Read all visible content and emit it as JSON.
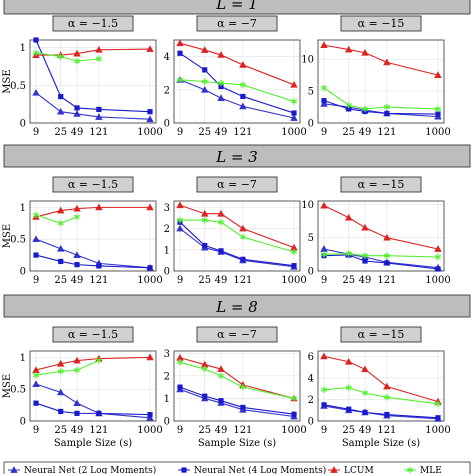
{
  "legend": [
    {
      "label": "Neural Net (2 Log Moments)",
      "color": "#3333cc",
      "marker": "triangle-filled"
    },
    {
      "label": "Neural Net (4 Log Moments)",
      "color": "#1a1acc",
      "marker": "square-filled"
    },
    {
      "label": "LCUM",
      "color": "#dd2222",
      "marker": "triangle"
    },
    {
      "label": "MLE",
      "color": "#55ee33",
      "marker": "star"
    }
  ],
  "colors": {
    "nn2": "#3333cc",
    "nn4": "#1a1acc",
    "lcum": "#dd2222",
    "mle": "#55ee33",
    "band": "#bdbdbd",
    "title_box": "#d0d0d0"
  },
  "chart_data": {
    "type": "line",
    "x": [
      9,
      25,
      49,
      121,
      1000
    ],
    "x_tick_labels": [
      "9",
      "25",
      "49",
      "121",
      "1000"
    ],
    "xlabel": "Sample Size (s)",
    "ylabel": "MSE",
    "rows": [
      {
        "band_label": "L = 1",
        "panels": [
          {
            "title": "α = −1.5",
            "ylim": [
              0,
              1.1
            ],
            "yticks": [
              0,
              0.5,
              1
            ],
            "series": [
              {
                "key": "nn2",
                "values": [
                  0.4,
                  0.15,
                  0.12,
                  0.08,
                  0.05
                ]
              },
              {
                "key": "nn4",
                "values": [
                  1.1,
                  0.35,
                  0.2,
                  0.18,
                  0.15
                ]
              },
              {
                "key": "lcum",
                "values": [
                  0.9,
                  0.9,
                  0.92,
                  0.97,
                  0.98
                ]
              },
              {
                "key": "mle",
                "values": [
                  0.93,
                  0.88,
                  0.82,
                  0.85,
                  null
                ]
              }
            ]
          },
          {
            "title": "α = −7",
            "ylim": [
              0,
              5
            ],
            "yticks": [
              0,
              2,
              4
            ],
            "series": [
              {
                "key": "nn2",
                "values": [
                  2.6,
                  2.0,
                  1.5,
                  1.0,
                  0.3
                ]
              },
              {
                "key": "nn4",
                "values": [
                  4.2,
                  3.2,
                  2.2,
                  1.6,
                  0.6
                ]
              },
              {
                "key": "lcum",
                "values": [
                  4.8,
                  4.4,
                  4.1,
                  3.5,
                  2.3
                ]
              },
              {
                "key": "mle",
                "values": [
                  2.6,
                  2.5,
                  2.4,
                  2.3,
                  1.3
                ]
              }
            ]
          },
          {
            "title": "α = −15",
            "ylim": [
              0,
              13
            ],
            "yticks": [
              0,
              5,
              10
            ],
            "series": [
              {
                "key": "nn2",
                "values": [
                  3.0,
                  2.5,
                  2.0,
                  1.5,
                  1.0
                ]
              },
              {
                "key": "nn4",
                "values": [
                  3.5,
                  2.2,
                  1.8,
                  1.5,
                  1.4
                ]
              },
              {
                "key": "lcum",
                "values": [
                  12.2,
                  11.5,
                  11.0,
                  9.5,
                  7.5
                ]
              },
              {
                "key": "mle",
                "values": [
                  5.5,
                  2.8,
                  2.2,
                  2.5,
                  2.2
                ]
              }
            ]
          }
        ]
      },
      {
        "band_label": "L = 3",
        "panels": [
          {
            "title": "α = −1.5",
            "ylim": [
              0,
              1.1
            ],
            "yticks": [
              0,
              0.5,
              1
            ],
            "series": [
              {
                "key": "nn2",
                "values": [
                  0.5,
                  0.35,
                  0.25,
                  0.12,
                  0.05
                ]
              },
              {
                "key": "nn4",
                "values": [
                  0.25,
                  0.15,
                  0.1,
                  0.08,
                  0.05
                ]
              },
              {
                "key": "lcum",
                "values": [
                  0.85,
                  0.95,
                  0.98,
                  1.0,
                  1.0
                ]
              },
              {
                "key": "mle",
                "values": [
                  0.88,
                  0.75,
                  0.85,
                  null,
                  null
                ]
              }
            ]
          },
          {
            "title": "α = −7",
            "ylim": [
              0,
              3.3
            ],
            "yticks": [
              0,
              1,
              2,
              3
            ],
            "series": [
              {
                "key": "nn2",
                "values": [
                  2.0,
                  1.1,
                  0.9,
                  0.5,
                  0.2
                ]
              },
              {
                "key": "nn4",
                "values": [
                  2.3,
                  1.2,
                  0.95,
                  0.55,
                  0.25
                ]
              },
              {
                "key": "lcum",
                "values": [
                  3.1,
                  2.7,
                  2.7,
                  2.0,
                  1.1
                ]
              },
              {
                "key": "mle",
                "values": [
                  2.4,
                  2.4,
                  2.3,
                  1.6,
                  0.9
                ]
              }
            ]
          },
          {
            "title": "α = −15",
            "ylim": [
              0,
              10.5
            ],
            "yticks": [
              0,
              5,
              10
            ],
            "series": [
              {
                "key": "nn2",
                "values": [
                  3.3,
                  2.5,
                  2.1,
                  1.3,
                  0.5
                ]
              },
              {
                "key": "nn4",
                "values": [
                  2.3,
                  2.4,
                  1.5,
                  1.2,
                  0.3
                ]
              },
              {
                "key": "lcum",
                "values": [
                  9.8,
                  8.0,
                  6.5,
                  5.0,
                  3.3
                ]
              },
              {
                "key": "mle",
                "values": [
                  2.5,
                  2.6,
                  2.3,
                  2.3,
                  2.1
                ]
              }
            ]
          }
        ]
      },
      {
        "band_label": "L = 8",
        "panels": [
          {
            "title": "α = −1.5",
            "ylim": [
              0,
              1.1
            ],
            "yticks": [
              0,
              0.5,
              1
            ],
            "series": [
              {
                "key": "nn2",
                "values": [
                  0.58,
                  0.45,
                  0.28,
                  0.12,
                  0.05
                ]
              },
              {
                "key": "nn4",
                "values": [
                  0.28,
                  0.15,
                  0.12,
                  0.12,
                  0.1
                ]
              },
              {
                "key": "lcum",
                "values": [
                  0.8,
                  0.9,
                  0.95,
                  0.98,
                  1.0
                ]
              },
              {
                "key": "mle",
                "values": [
                  0.72,
                  0.78,
                  0.8,
                  0.95,
                  null
                ]
              }
            ]
          },
          {
            "title": "α = −7",
            "ylim": [
              0,
              3.1
            ],
            "yticks": [
              0,
              1,
              2,
              3
            ],
            "series": [
              {
                "key": "nn2",
                "values": [
                  1.4,
                  1.0,
                  0.8,
                  0.5,
                  0.2
                ]
              },
              {
                "key": "nn4",
                "values": [
                  1.5,
                  1.1,
                  0.9,
                  0.6,
                  0.3
                ]
              },
              {
                "key": "lcum",
                "values": [
                  2.8,
                  2.5,
                  2.3,
                  1.6,
                  1.0
                ]
              },
              {
                "key": "mle",
                "values": [
                  2.6,
                  2.3,
                  2.0,
                  1.5,
                  1.0
                ]
              }
            ]
          },
          {
            "title": "α = −15",
            "ylim": [
              0,
              6.5
            ],
            "yticks": [
              0,
              2,
              4,
              6
            ],
            "series": [
              {
                "key": "nn2",
                "values": [
                  1.4,
                  1.0,
                  0.8,
                  0.5,
                  0.2
                ]
              },
              {
                "key": "nn4",
                "values": [
                  1.5,
                  1.1,
                  0.8,
                  0.6,
                  0.3
                ]
              },
              {
                "key": "lcum",
                "values": [
                  6.0,
                  5.5,
                  4.8,
                  3.2,
                  1.8
                ]
              },
              {
                "key": "mle",
                "values": [
                  2.9,
                  3.1,
                  2.6,
                  2.2,
                  1.6
                ]
              }
            ]
          }
        ]
      }
    ]
  }
}
